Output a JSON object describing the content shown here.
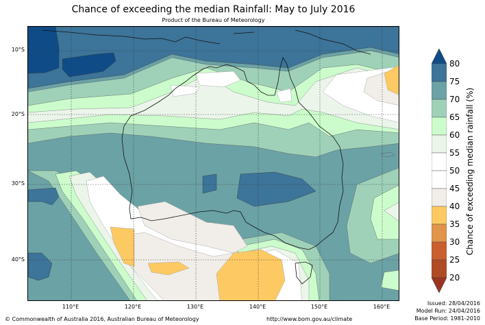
{
  "header": {
    "title": "Chance of exceeding the median Rainfall: May to July 2016",
    "subtitle": "Product of the Bureau of Meteorology"
  },
  "map": {
    "lat_labels": [
      "10°S",
      "20°S",
      "30°S",
      "40°S"
    ],
    "lon_labels": [
      "110°E",
      "120°E",
      "130°E",
      "140°E",
      "150°E",
      "160°E"
    ],
    "region": "Australia"
  },
  "colorbar": {
    "label": "Chance of exceeding median rainfall (%)",
    "ticks": [
      "80",
      "75",
      "70",
      "65",
      "60",
      "55",
      "50",
      "45",
      "40",
      "35",
      "30",
      "25",
      "20"
    ],
    "bands": [
      {
        "range": "above 80",
        "color": "#0f4c87"
      },
      {
        "range": "75-80",
        "color": "#3d7499"
      },
      {
        "range": "70-75",
        "color": "#6ba2a6"
      },
      {
        "range": "65-70",
        "color": "#9fd1b9"
      },
      {
        "range": "60-65",
        "color": "#ccfccc"
      },
      {
        "range": "55-60",
        "color": "#ebf5ea"
      },
      {
        "range": "50-55",
        "color": "#ffffff"
      },
      {
        "range": "45-50",
        "color": "#ffffff"
      },
      {
        "range": "40-45",
        "color": "#f1ede8"
      },
      {
        "range": "35-40",
        "color": "#fdc963"
      },
      {
        "range": "30-35",
        "color": "#e0954a"
      },
      {
        "range": "25-30",
        "color": "#c95e2f"
      },
      {
        "range": "20-25",
        "color": "#b04a24"
      },
      {
        "range": "below 20",
        "color": "#9c3520"
      }
    ]
  },
  "footer": {
    "copyright": "© Commonwealth of Australia 2016, Australian Bureau of Meteorology",
    "url": "http://www.bom.gov.au/climate",
    "issued": "Issued: 28/04/2016",
    "model_run": "Model Run: 24/04/2016",
    "base_period": "Base Period: 1981-2010"
  }
}
